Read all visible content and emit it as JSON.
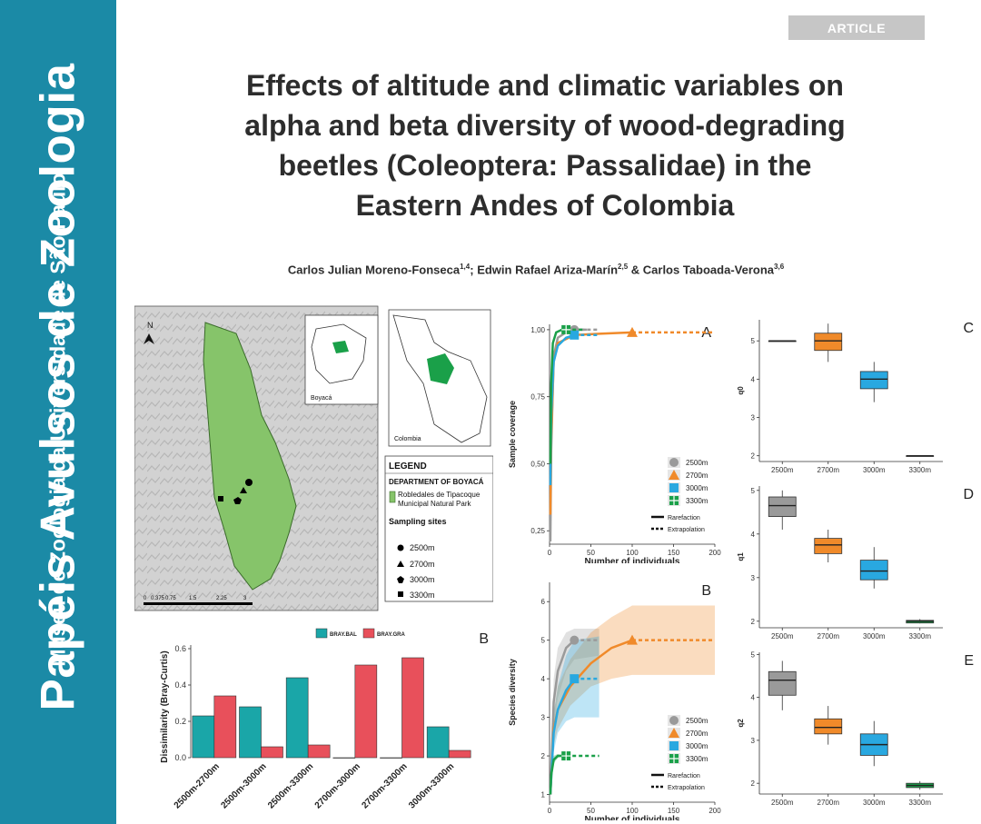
{
  "journal": {
    "name": "Papéis Avulsos de Zoologia",
    "publisher": "Museu de Zoologia da Universidade de São Paulo",
    "article_type": "ARTICLE"
  },
  "paper": {
    "title_lines": [
      "Effects of altitude and climatic variables on",
      "alpha and beta diversity of wood-degrading",
      "beetles (Coleoptera: Passalidae) in the",
      "Eastern Andes of Colombia"
    ],
    "authors": [
      {
        "name": "Carlos Julian Moreno-Fonseca",
        "aff": "1,4",
        "sep": "; "
      },
      {
        "name": "Edwin Rafael Ariza-Marín",
        "aff": "2,5",
        "sep": " & "
      },
      {
        "name": "Carlos Taboada-Verona",
        "aff": "3,6",
        "sep": ""
      }
    ]
  },
  "map": {
    "north": "N",
    "inset_region": "Boyacá",
    "inset_country": "Colombia",
    "legend_title": "LEGEND",
    "department": "DEPARTMENT OF BOYACÁ",
    "park_line1": "Robledales de Tipacoque",
    "park_line2": "Municipal Natural Park",
    "sites_title": "Sampling sites",
    "sites": [
      {
        "label": "2500m",
        "marker": "circle"
      },
      {
        "label": "2700m",
        "marker": "triangle"
      },
      {
        "label": "3000m",
        "marker": "pentagon"
      },
      {
        "label": "3300m",
        "marker": "square"
      }
    ],
    "scale_labels": [
      "0",
      "0.375",
      "0.75",
      "1.5",
      "2.25",
      "3"
    ],
    "colors": {
      "park": "#86c46a",
      "terrain": "#cfcfcf"
    }
  },
  "chart_data": [
    {
      "id": "A",
      "type": "line",
      "panel_letter": "A",
      "xlabel": "Number of individuals",
      "ylabel": "Sample coverage",
      "xlim": [
        0,
        200
      ],
      "ylim": [
        0.2,
        1.02
      ],
      "xticks": [
        0,
        50,
        100,
        150,
        200
      ],
      "yticks": [
        0.25,
        0.5,
        0.75,
        1.0
      ],
      "ytick_labels": [
        "0,25",
        "0,50",
        "0,75",
        "1,00"
      ],
      "series": [
        {
          "name": "2500m",
          "color": "#9a9a9a",
          "marker": "circle",
          "x": [
            1,
            2,
            5,
            10,
            20,
            30,
            45
          ],
          "y": [
            0.21,
            0.55,
            0.9,
            0.97,
            0.99,
            1.0,
            1.0
          ],
          "observed": [
            30,
            1.0
          ],
          "extrap_to": 60
        },
        {
          "name": "2700m",
          "color": "#f08a2a",
          "marker": "triangle",
          "x": [
            1,
            2,
            5,
            10,
            30,
            60,
            100
          ],
          "y": [
            0.31,
            0.6,
            0.88,
            0.95,
            0.98,
            0.985,
            0.99
          ],
          "observed": [
            100,
            0.99
          ],
          "extrap_to": 200
        },
        {
          "name": "3000m",
          "color": "#29a8e0",
          "marker": "square",
          "x": [
            1,
            2,
            5,
            10,
            20,
            30
          ],
          "y": [
            0.42,
            0.68,
            0.88,
            0.94,
            0.97,
            0.98
          ],
          "observed": [
            30,
            0.98
          ],
          "extrap_to": 60
        },
        {
          "name": "3300m",
          "color": "#1aa049",
          "marker": "cross",
          "x": [
            1,
            2,
            4,
            8,
            15,
            20
          ],
          "y": [
            0.5,
            0.8,
            0.95,
            0.99,
            1.0,
            1.0
          ],
          "observed": [
            20,
            1.0
          ],
          "extrap_to": 40
        }
      ],
      "line_legend": [
        "Rarefaction",
        "Extrapolation"
      ]
    },
    {
      "id": "B-diversity",
      "type": "line",
      "panel_letter": "B",
      "xlabel": "Number of individuals",
      "ylabel": "Species diversity",
      "xlim": [
        0,
        200
      ],
      "ylim": [
        0.8,
        6.5
      ],
      "xticks": [
        0,
        50,
        100,
        150,
        200
      ],
      "yticks": [
        1,
        2,
        3,
        4,
        5,
        6
      ],
      "series": [
        {
          "name": "2500m",
          "color": "#9a9a9a",
          "marker": "circle",
          "x": [
            1,
            5,
            10,
            20,
            30
          ],
          "y": [
            1,
            3.4,
            4.2,
            4.8,
            5
          ],
          "observed": [
            30,
            5
          ],
          "extrap_to": 60,
          "ci_low": [
            1,
            2.8,
            3.5,
            4.2,
            4.5,
            4.6
          ],
          "ci_high": [
            1,
            4.0,
            4.8,
            5.2,
            5.3,
            5.3
          ]
        },
        {
          "name": "2700m",
          "color": "#f08a2a",
          "marker": "triangle",
          "x": [
            1,
            5,
            10,
            25,
            50,
            75,
            100
          ],
          "y": [
            1,
            2.7,
            3.2,
            3.8,
            4.4,
            4.8,
            5
          ],
          "observed": [
            100,
            5
          ],
          "extrap_to": 200,
          "ci_low": [
            1,
            2.3,
            2.7,
            3.3,
            3.8,
            4.0,
            4.1,
            4.1
          ],
          "ci_high": [
            1,
            3.1,
            3.8,
            4.5,
            5.2,
            5.6,
            5.9,
            5.9
          ]
        },
        {
          "name": "3000m",
          "color": "#29a8e0",
          "marker": "square",
          "x": [
            1,
            5,
            10,
            20,
            30
          ],
          "y": [
            1,
            2.6,
            3.2,
            3.7,
            4
          ],
          "observed": [
            30,
            4
          ],
          "extrap_to": 60,
          "ci_low": [
            1,
            2.1,
            2.6,
            2.9,
            3.0,
            3.0
          ],
          "ci_high": [
            1,
            3.1,
            3.8,
            4.6,
            5.0,
            5.1
          ]
        },
        {
          "name": "3300m",
          "color": "#1aa049",
          "marker": "cross",
          "x": [
            1,
            2,
            5,
            10,
            20
          ],
          "y": [
            1,
            1.5,
            1.9,
            2,
            2
          ],
          "observed": [
            20,
            2
          ],
          "extrap_to": 60,
          "ci_low": [
            1,
            1.4,
            1.8,
            1.95,
            2,
            2
          ],
          "ci_high": [
            1,
            1.6,
            2,
            2.05,
            2,
            2
          ]
        }
      ],
      "line_legend": [
        "Rarefaction",
        "Extrapolation"
      ]
    },
    {
      "id": "B-dissimilarity",
      "type": "bar",
      "panel_letter": "B",
      "ylabel": "Dissimilarity (Bray-Curtis)",
      "ylim": [
        0,
        0.62
      ],
      "yticks": [
        0.0,
        0.2,
        0.4,
        0.6
      ],
      "categories": [
        "2500m-2700m",
        "2500m-3000m",
        "2500m-3300m",
        "2700m-3000m",
        "2700m-3300m",
        "3000m-3300m"
      ],
      "series": [
        {
          "name": "BRAY.BAL",
          "color": "#1aa6a8",
          "values": [
            0.23,
            0.28,
            0.44,
            0.0,
            0.0,
            0.17
          ]
        },
        {
          "name": "BRAY.GRA",
          "color": "#e8505b",
          "values": [
            0.34,
            0.06,
            0.07,
            0.51,
            0.55,
            0.04
          ]
        }
      ]
    },
    {
      "id": "C",
      "type": "boxplot",
      "panel_letter": "C",
      "ylabel": "q0",
      "ylim": [
        1.85,
        5.55
      ],
      "yticks": [
        2,
        3,
        4,
        5
      ],
      "categories": [
        "2500m",
        "2700m",
        "3000m",
        "3300m"
      ],
      "colors": [
        "#9a9a9a",
        "#f08a2a",
        "#29a8e0",
        "#1aa049"
      ],
      "boxes": [
        {
          "min": 5,
          "q1": 5,
          "median": 5,
          "q3": 5,
          "max": 5
        },
        {
          "min": 4.45,
          "q1": 4.75,
          "median": 5,
          "q3": 5.2,
          "max": 5.45
        },
        {
          "min": 3.4,
          "q1": 3.75,
          "median": 4,
          "q3": 4.2,
          "max": 4.45
        },
        {
          "min": 2,
          "q1": 2,
          "median": 2,
          "q3": 2,
          "max": 2
        }
      ]
    },
    {
      "id": "D",
      "type": "boxplot",
      "panel_letter": "D",
      "ylabel": "q1",
      "ylim": [
        1.85,
        5.1
      ],
      "yticks": [
        2,
        3,
        4,
        5
      ],
      "categories": [
        "2500m",
        "2700m",
        "3000m",
        "3300m"
      ],
      "colors": [
        "#9a9a9a",
        "#f08a2a",
        "#29a8e0",
        "#1aa049"
      ],
      "boxes": [
        {
          "min": 4.1,
          "q1": 4.4,
          "median": 4.65,
          "q3": 4.85,
          "max": 5.0
        },
        {
          "min": 3.35,
          "q1": 3.55,
          "median": 3.75,
          "q3": 3.9,
          "max": 4.1
        },
        {
          "min": 2.75,
          "q1": 2.95,
          "median": 3.15,
          "q3": 3.4,
          "max": 3.7
        },
        {
          "min": 1.95,
          "q1": 1.96,
          "median": 2.0,
          "q3": 2.02,
          "max": 2.05
        }
      ]
    },
    {
      "id": "E",
      "type": "boxplot",
      "panel_letter": "E",
      "ylabel": "q2",
      "ylim": [
        1.75,
        5.05
      ],
      "yticks": [
        2,
        3,
        4,
        5
      ],
      "categories": [
        "2500m",
        "2700m",
        "3000m",
        "3300m"
      ],
      "colors": [
        "#9a9a9a",
        "#f08a2a",
        "#29a8e0",
        "#1aa049"
      ],
      "boxes": [
        {
          "min": 3.7,
          "q1": 4.05,
          "median": 4.4,
          "q3": 4.6,
          "max": 4.85
        },
        {
          "min": 2.9,
          "q1": 3.15,
          "median": 3.3,
          "q3": 3.5,
          "max": 3.8
        },
        {
          "min": 2.4,
          "q1": 2.65,
          "median": 2.9,
          "q3": 3.15,
          "max": 3.45
        },
        {
          "min": 1.85,
          "q1": 1.9,
          "median": 1.95,
          "q3": 2.0,
          "max": 2.05
        }
      ]
    }
  ]
}
